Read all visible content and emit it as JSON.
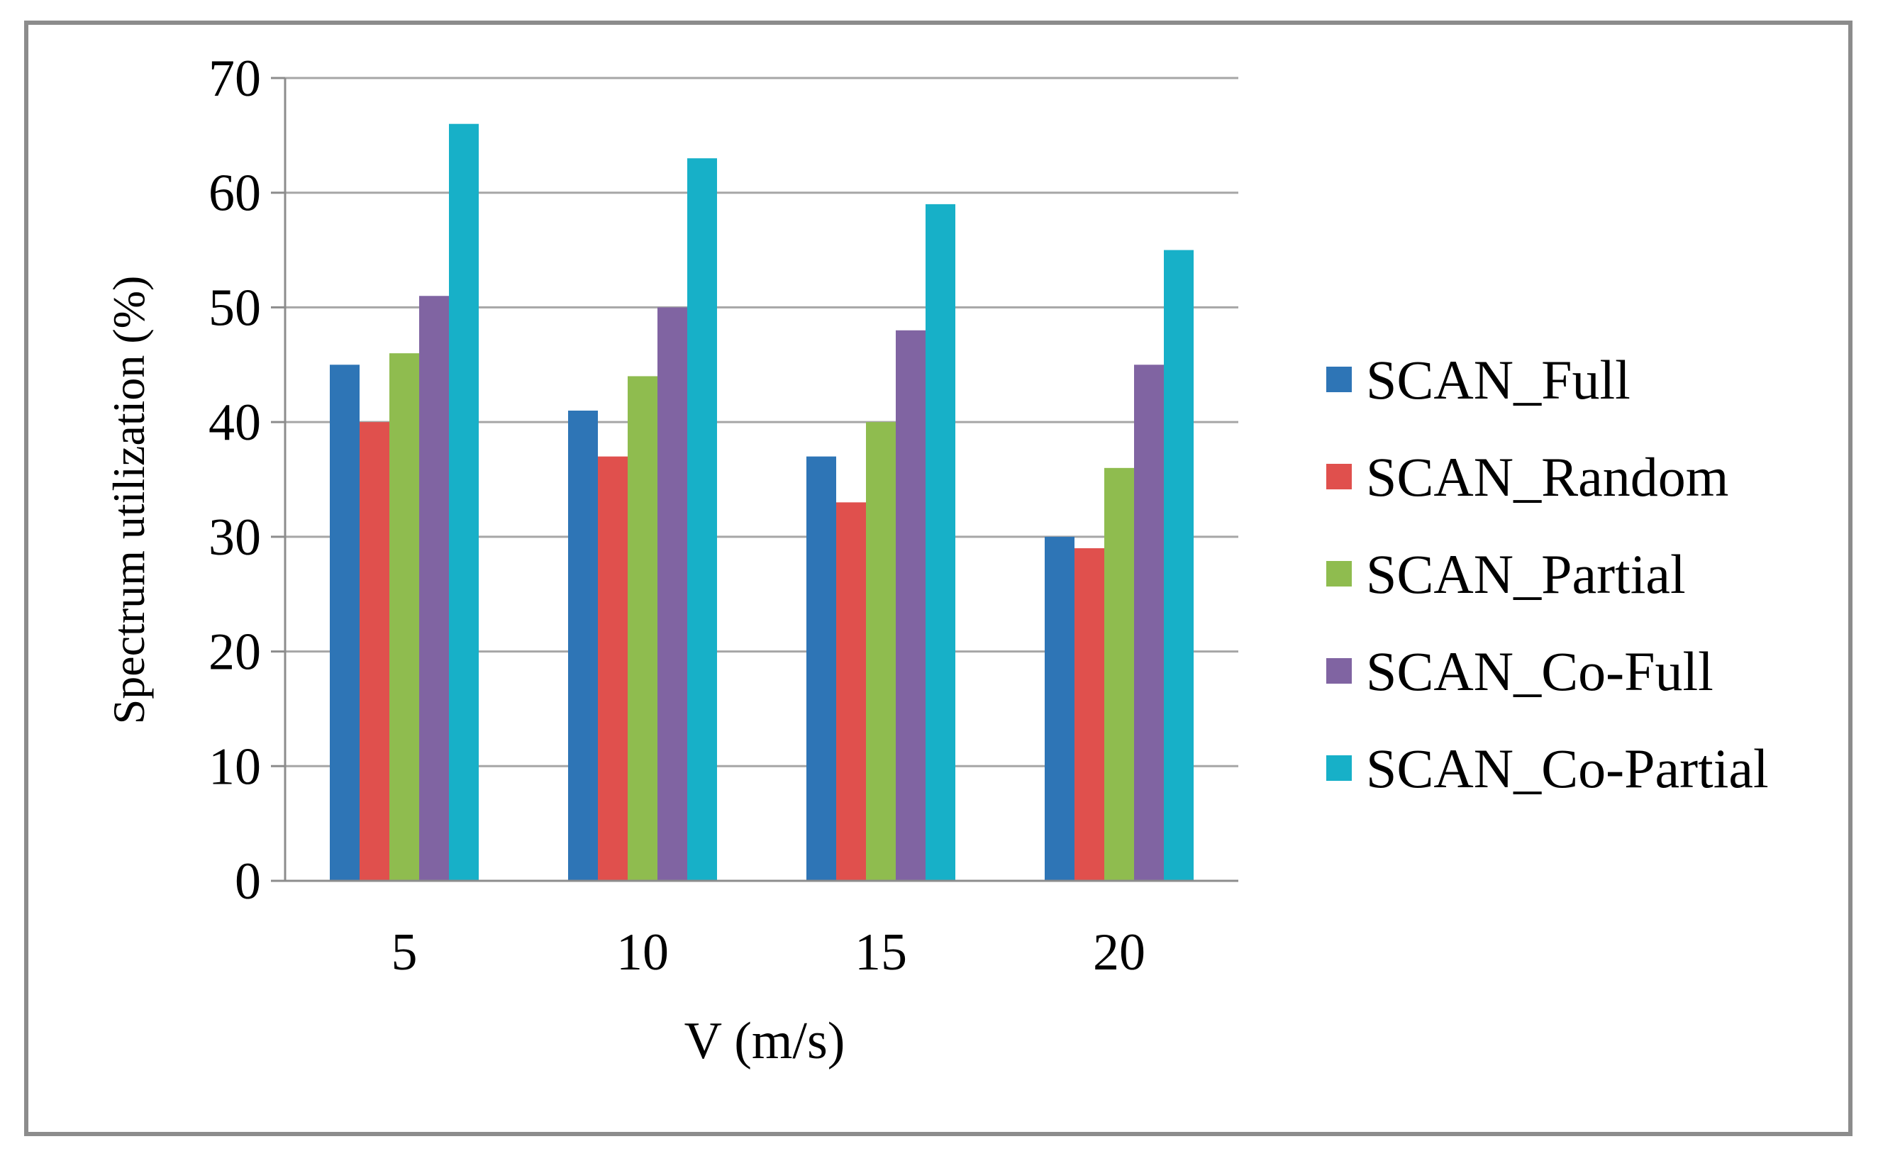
{
  "chart_data": {
    "type": "bar",
    "title": "",
    "xlabel": "V (m/s)",
    "ylabel": "Spectrum utilization (%)",
    "ylim": [
      0,
      70
    ],
    "yticks": [
      0,
      10,
      20,
      30,
      40,
      50,
      60,
      70
    ],
    "grid": true,
    "legend_position": "right",
    "categories": [
      "5",
      "10",
      "15",
      "20"
    ],
    "series": [
      {
        "name": "SCAN_Full",
        "color": "#2e75b6",
        "values": [
          45,
          41,
          37,
          30
        ]
      },
      {
        "name": "SCAN_Random",
        "color": "#e0504d",
        "values": [
          40,
          37,
          33,
          29
        ]
      },
      {
        "name": "SCAN_Partial",
        "color": "#8fbc4f",
        "values": [
          46,
          44,
          40,
          36
        ]
      },
      {
        "name": "SCAN_Co-Full",
        "color": "#8064a2",
        "values": [
          51,
          50,
          48,
          45
        ]
      },
      {
        "name": "SCAN_Co-Partial",
        "color": "#17b0c8",
        "values": [
          66,
          63,
          59,
          55
        ]
      }
    ]
  }
}
